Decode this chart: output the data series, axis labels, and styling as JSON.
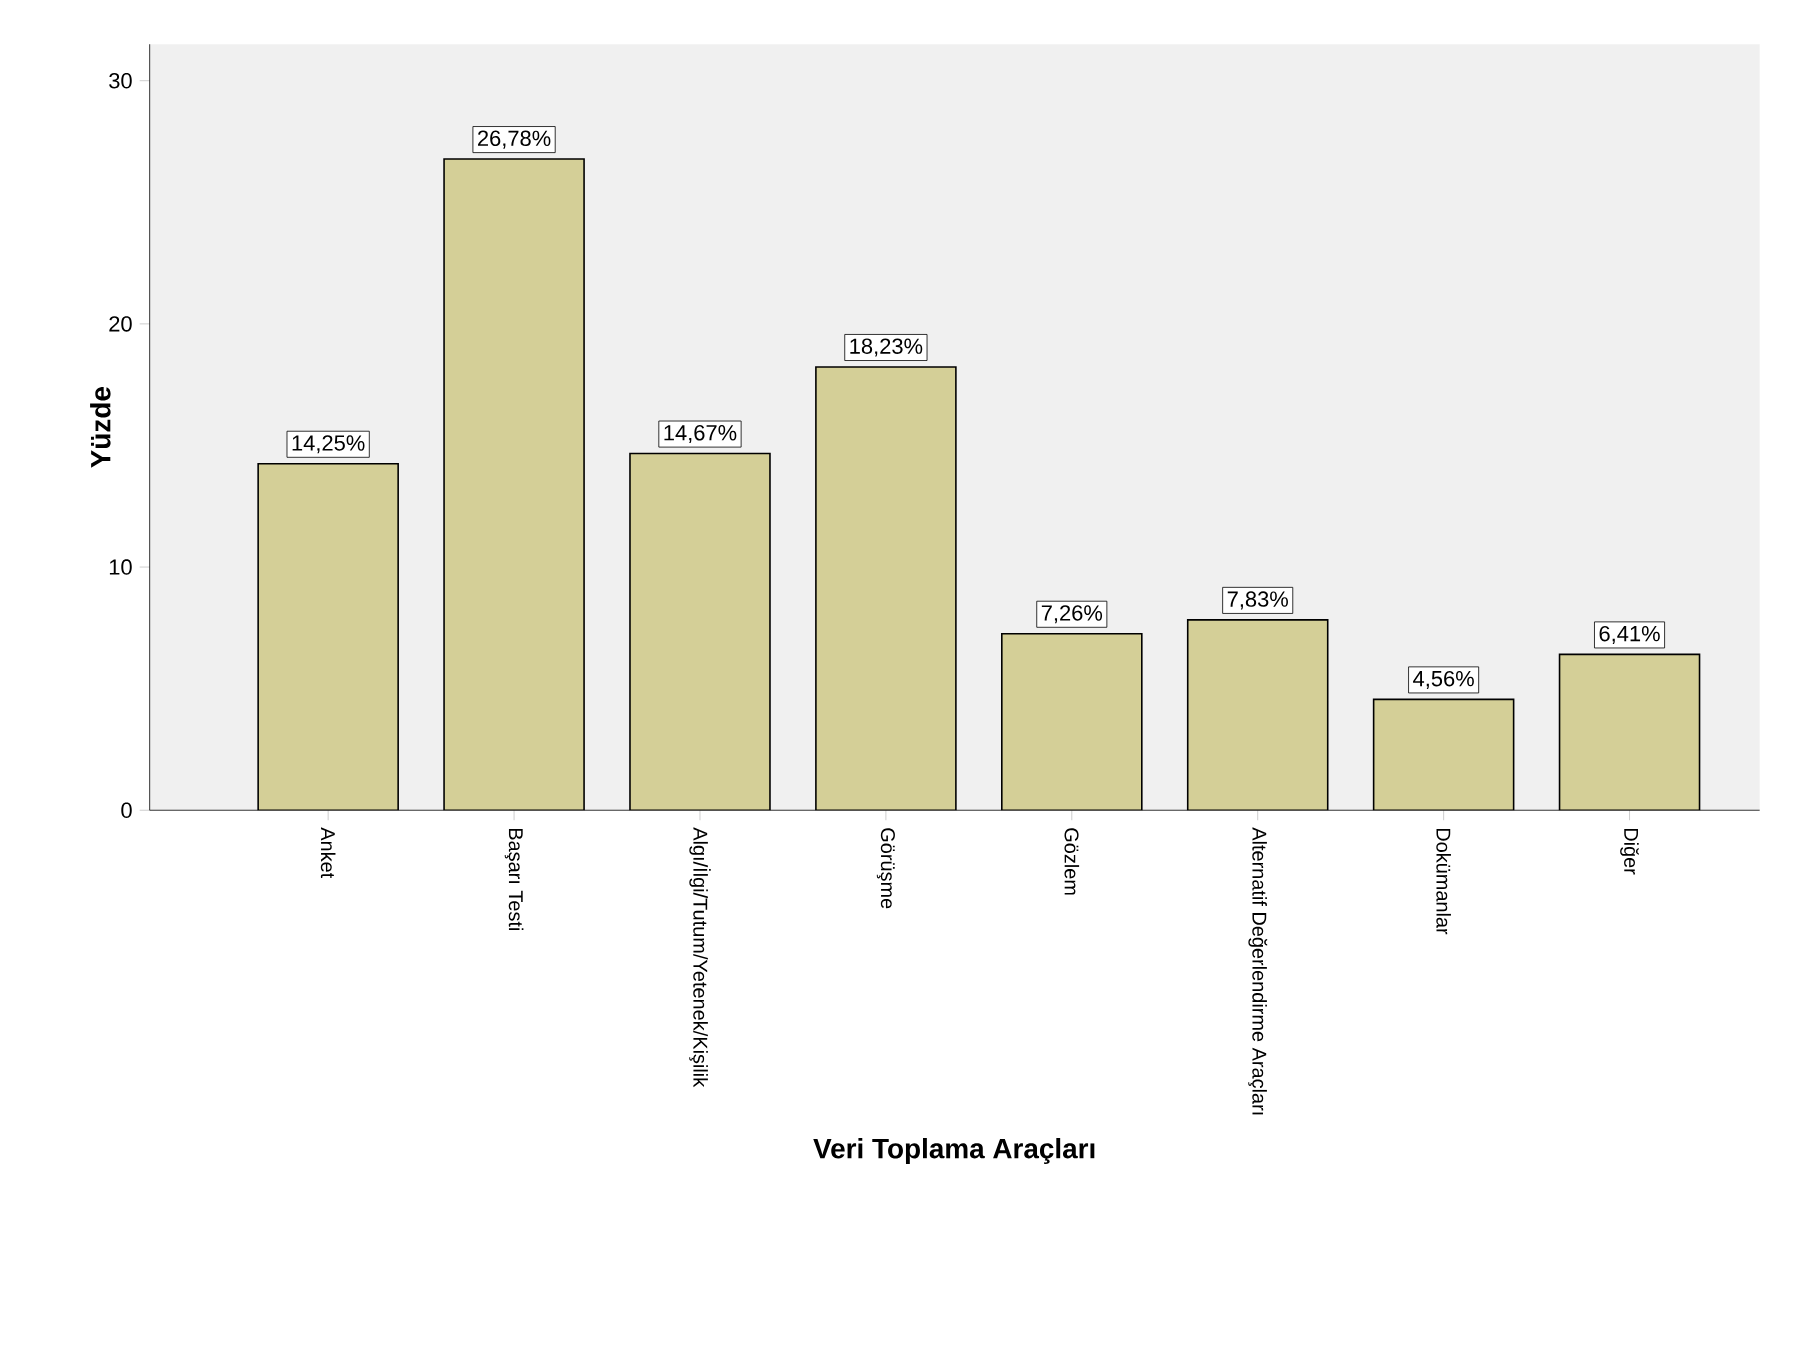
{
  "chart_data": {
    "type": "bar",
    "xlabel": "Veri Toplama Araçları",
    "ylabel": "Yüzde",
    "categories": [
      "Anket",
      "Başarı Testi",
      "Algı/İlgi/Tutum/Yetenek/Kişilik",
      "Görüşme",
      "Gözlem",
      "Alternatif Değerlendirme Araçları",
      "Dokümanlar",
      "Diğer"
    ],
    "values": [
      14.25,
      26.78,
      14.67,
      18.23,
      7.26,
      7.83,
      4.56,
      6.41
    ],
    "value_labels": [
      "14,25%",
      "26,78%",
      "14,67%",
      "18,23%",
      "7,26%",
      "7,83%",
      "4,56%",
      "6,41%"
    ],
    "color": "#d4cf97",
    "ylim": [
      0,
      31.5
    ],
    "yticks": [
      0,
      10,
      20,
      30
    ],
    "grid": false
  }
}
